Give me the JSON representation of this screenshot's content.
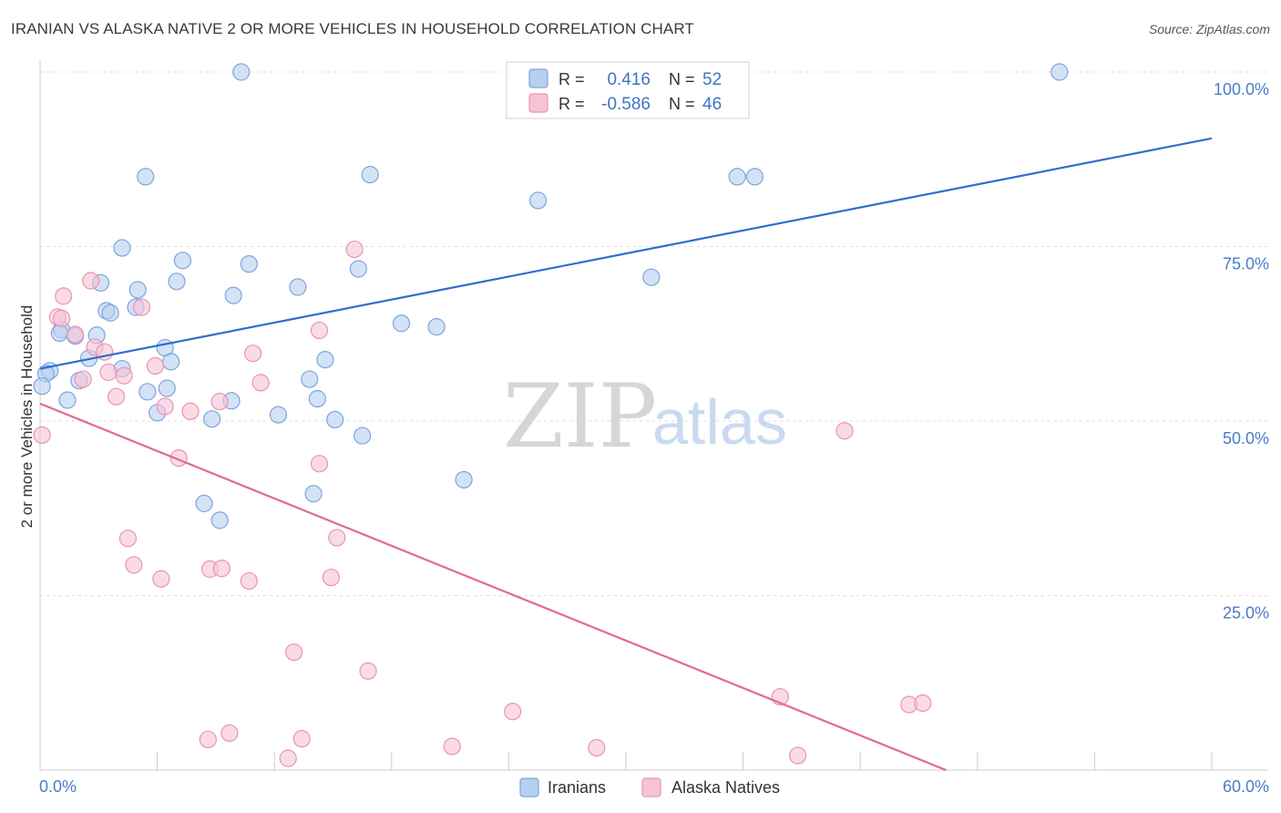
{
  "title": "IRANIAN VS ALASKA NATIVE 2 OR MORE VEHICLES IN HOUSEHOLD CORRELATION CHART",
  "source": "Source: ZipAtlas.com",
  "watermark": {
    "zip": "ZIP",
    "atlas": "atlas"
  },
  "colors": {
    "iranians_fill": "#b7cff0",
    "iranians_stroke": "#7aa6dd",
    "iranians_line": "#2f6fcb",
    "alaska_fill": "#f6c3d4",
    "alaska_stroke": "#eb93b0",
    "alaska_line": "#e06992",
    "grid": "#dddddd",
    "tick_label": "#4a7cc7"
  },
  "legend": {
    "rows": [
      {
        "r_label": "R =",
        "r_value": "0.416",
        "n_label": "N =",
        "n_value": "52"
      },
      {
        "r_label": "R =",
        "r_value": "-0.586",
        "n_label": "N =",
        "n_value": "46"
      }
    ]
  },
  "chart_data": {
    "type": "scatter",
    "xlabel": "",
    "ylabel": "2 or more Vehicles in Household",
    "xlim": [
      0,
      60
    ],
    "ylim": [
      0,
      100
    ],
    "x_tick_labels": [
      "0.0%",
      "60.0%"
    ],
    "y_tick_labels": [
      "100.0%",
      "75.0%",
      "50.0%",
      "25.0%"
    ],
    "y_tick_values": [
      100,
      75,
      50,
      25
    ],
    "grid": true,
    "legend_position": "top-center",
    "series": [
      {
        "name": "Iranians",
        "color": "#b7cff0",
        "trend": {
          "x": [
            0,
            60
          ],
          "y": [
            57.5,
            90.5
          ]
        },
        "points": [
          [
            10.3,
            100
          ],
          [
            52.2,
            100
          ],
          [
            5.4,
            85
          ],
          [
            16.9,
            85.3
          ],
          [
            35.7,
            85
          ],
          [
            36.6,
            85
          ],
          [
            25.5,
            81.6
          ],
          [
            4.2,
            74.8
          ],
          [
            7.3,
            73
          ],
          [
            10.7,
            72.5
          ],
          [
            16.3,
            71.8
          ],
          [
            7,
            70
          ],
          [
            31.3,
            70.6
          ],
          [
            3.1,
            69.8
          ],
          [
            5,
            68.8
          ],
          [
            9.9,
            68
          ],
          [
            13.2,
            69.2
          ],
          [
            4.9,
            66.3
          ],
          [
            3.4,
            65.8
          ],
          [
            3.6,
            65.5
          ],
          [
            18.5,
            64
          ],
          [
            20.3,
            63.5
          ],
          [
            1.1,
            63.1
          ],
          [
            1,
            62.6
          ],
          [
            1.8,
            62.2
          ],
          [
            2.9,
            62.3
          ],
          [
            6.4,
            60.5
          ],
          [
            2.5,
            59
          ],
          [
            6.7,
            58.5
          ],
          [
            14.6,
            58.8
          ],
          [
            0.5,
            57.2
          ],
          [
            0.3,
            56.8
          ],
          [
            4.2,
            57.5
          ],
          [
            2,
            55.8
          ],
          [
            13.8,
            56
          ],
          [
            5.5,
            54.2
          ],
          [
            6.5,
            54.7
          ],
          [
            0.1,
            55
          ],
          [
            1.4,
            53
          ],
          [
            14.2,
            53.2
          ],
          [
            9.8,
            52.9
          ],
          [
            6,
            51.2
          ],
          [
            8.8,
            50.3
          ],
          [
            12.2,
            50.9
          ],
          [
            15.1,
            50.2
          ],
          [
            16.5,
            47.9
          ],
          [
            21.7,
            41.6
          ],
          [
            14,
            39.6
          ],
          [
            8.4,
            38.2
          ],
          [
            9.2,
            35.8
          ]
        ]
      },
      {
        "name": "Alaska Natives",
        "color": "#f6c3d4",
        "trend": {
          "x": [
            0,
            46.4
          ],
          "y": [
            52.5,
            0
          ]
        },
        "points": [
          [
            16.1,
            74.6
          ],
          [
            2.6,
            70.1
          ],
          [
            1.2,
            67.9
          ],
          [
            5.2,
            66.3
          ],
          [
            0.9,
            64.9
          ],
          [
            1.8,
            62.4
          ],
          [
            14.3,
            63
          ],
          [
            2.8,
            60.6
          ],
          [
            3.3,
            59.9
          ],
          [
            10.9,
            59.7
          ],
          [
            5.9,
            57.9
          ],
          [
            1.1,
            64.7
          ],
          [
            3.5,
            57
          ],
          [
            2.2,
            56
          ],
          [
            4.3,
            56.5
          ],
          [
            11.3,
            55.5
          ],
          [
            3.9,
            53.5
          ],
          [
            9.2,
            52.8
          ],
          [
            6.4,
            52.1
          ],
          [
            7.7,
            51.4
          ],
          [
            0.1,
            48
          ],
          [
            41.2,
            48.6
          ],
          [
            7.1,
            44.7
          ],
          [
            14.3,
            43.9
          ],
          [
            4.5,
            33.2
          ],
          [
            15.2,
            33.3
          ],
          [
            4.8,
            29.4
          ],
          [
            8.7,
            28.8
          ],
          [
            9.3,
            28.9
          ],
          [
            6.2,
            27.4
          ],
          [
            10.7,
            27.1
          ],
          [
            14.9,
            27.6
          ],
          [
            13,
            16.9
          ],
          [
            16.8,
            14.2
          ],
          [
            24.2,
            8.4
          ],
          [
            37.9,
            10.5
          ],
          [
            44.5,
            9.4
          ],
          [
            45.2,
            9.6
          ],
          [
            8.6,
            4.4
          ],
          [
            9.7,
            5.3
          ],
          [
            13.4,
            4.5
          ],
          [
            21.1,
            3.4
          ],
          [
            28.5,
            3.2
          ],
          [
            12.7,
            1.7
          ],
          [
            38.8,
            2.1
          ]
        ]
      }
    ]
  },
  "bottom_legend": [
    "Iranians",
    "Alaska Natives"
  ]
}
